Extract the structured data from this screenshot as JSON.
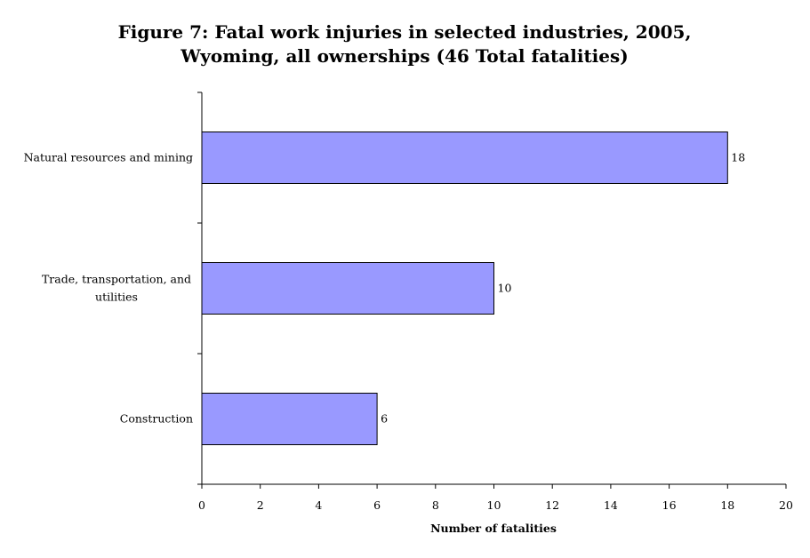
{
  "chart_data": {
    "type": "bar",
    "orientation": "horizontal",
    "title": "Figure 7: Fatal work injuries in selected industries, 2005,",
    "subtitle": "Wyoming, all ownerships (46 Total fatalities)",
    "xlabel": "Number of fatalities",
    "ylabel": "",
    "categories": [
      "Natural resources and mining",
      "Trade, transportation, and utilities",
      "Construction"
    ],
    "category_lines": [
      [
        "Natural resources and mining"
      ],
      [
        "Trade, transportation, and",
        "utilities"
      ],
      [
        "Construction"
      ]
    ],
    "values": [
      18,
      10,
      6
    ],
    "data_labels": [
      "18",
      "10",
      "6"
    ],
    "xlim": [
      0,
      20
    ],
    "xticks": [
      0,
      2,
      4,
      6,
      8,
      10,
      12,
      14,
      16,
      18,
      20
    ],
    "bar_color": "#9999ff",
    "bar_edge_color": "#000000",
    "grid": false,
    "legend": "none"
  }
}
